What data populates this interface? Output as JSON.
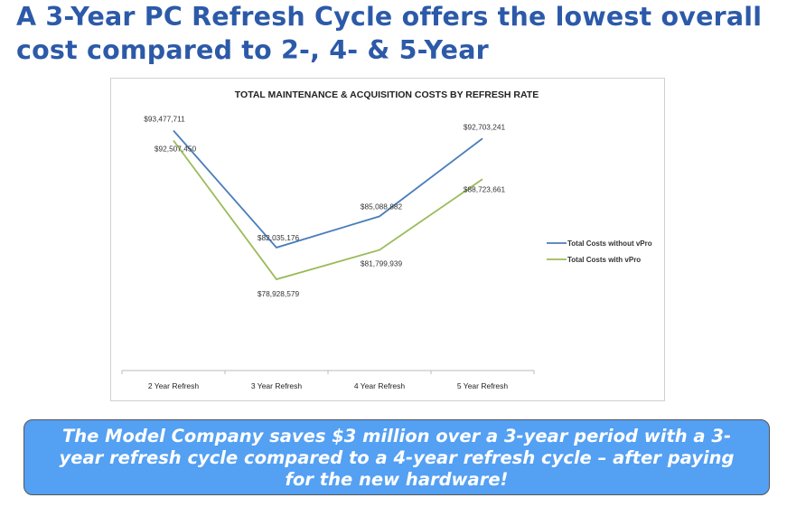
{
  "slide": {
    "title": "A 3-Year PC Refresh Cycle offers the lowest overall cost compared to 2-, 4- & 5-Year",
    "callout": "The Model Company saves $3 million over a 3-year period with a 3-year refresh cycle compared to a 4-year refresh cycle – after paying for the new hardware!",
    "title_color": "#2c5aa8",
    "callout_color": "#54a0f3"
  },
  "chart_data": {
    "type": "line",
    "title": "TOTAL MAINTENANCE & ACQUISITION COSTS BY REFRESH RATE",
    "categories": [
      "2 Year Refresh",
      "3 Year Refresh",
      "4 Year Refresh",
      "5 Year Refresh"
    ],
    "series": [
      {
        "name": "Total Costs without vPro",
        "color": "#4a7ebb",
        "values": [
          93477711,
          82035176,
          85088882,
          92703241
        ],
        "labels": [
          "$93,477,711",
          "$82,035,176",
          "$85,088,882",
          "$92,703,241"
        ]
      },
      {
        "name": "Total Costs with vPro",
        "color": "#9bbb59",
        "values": [
          92507450,
          78928579,
          81799939,
          88723661
        ],
        "labels": [
          "$92,507,450",
          "$78,928,579",
          "$81,799,939",
          "$88,723,661"
        ]
      }
    ],
    "ylim": [
      70000000,
      96000000
    ],
    "y_axis_visible": false,
    "grid": false,
    "legend": "right"
  }
}
